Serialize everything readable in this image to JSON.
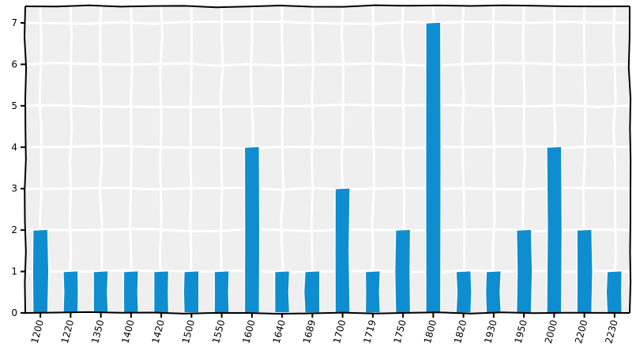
{
  "chart_data": {
    "type": "bar",
    "title": "",
    "xlabel": "",
    "ylabel": "",
    "categories": [
      "1200",
      "1220",
      "1350",
      "1400",
      "1420",
      "1500",
      "1550",
      "1600",
      "1640",
      "1689",
      "1700",
      "1719",
      "1750",
      "1800",
      "1820",
      "1930",
      "1950",
      "2000",
      "2200",
      "2230"
    ],
    "values": [
      2,
      1,
      1,
      1,
      1,
      1,
      1,
      4,
      1,
      1,
      3,
      1,
      2,
      7,
      1,
      1,
      2,
      4,
      2,
      1
    ],
    "ylim": [
      0,
      7.4
    ],
    "yticks": [
      0,
      1,
      2,
      3,
      4,
      5,
      6,
      7
    ],
    "grid": true,
    "legend": "none",
    "colors": {
      "bar": "#0e8ed0",
      "plot_background": "#efefef",
      "grid": "#ffffff",
      "axis": "#000000"
    }
  }
}
